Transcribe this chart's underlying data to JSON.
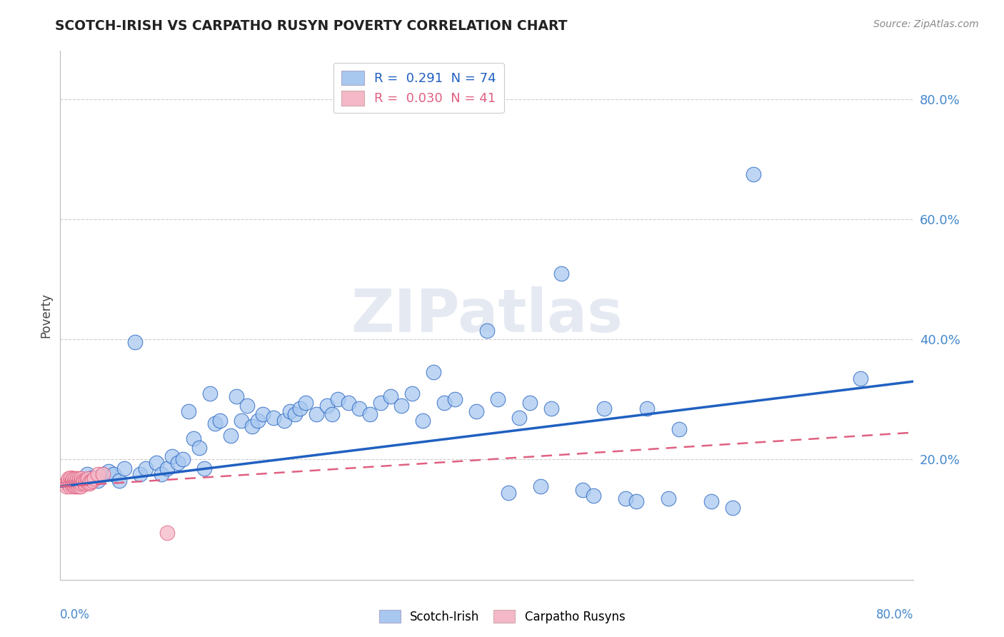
{
  "title": "SCOTCH-IRISH VS CARPATHO RUSYN POVERTY CORRELATION CHART",
  "source": "Source: ZipAtlas.com",
  "ylabel": "Poverty",
  "ytick_vals": [
    0.2,
    0.4,
    0.6,
    0.8
  ],
  "xlim": [
    0.0,
    0.8
  ],
  "ylim": [
    0.0,
    0.88
  ],
  "blue_color": "#a8c8f0",
  "pink_color": "#f5b8c8",
  "blue_line_color": "#2060c0",
  "pink_line_color": "#e06080",
  "watermark": "ZIPatlas",
  "si_x": [
    0.02,
    0.025,
    0.03,
    0.035,
    0.04,
    0.045,
    0.05,
    0.055,
    0.06,
    0.07,
    0.075,
    0.08,
    0.09,
    0.095,
    0.1,
    0.105,
    0.11,
    0.115,
    0.12,
    0.125,
    0.13,
    0.135,
    0.14,
    0.145,
    0.15,
    0.16,
    0.165,
    0.17,
    0.175,
    0.18,
    0.185,
    0.19,
    0.2,
    0.21,
    0.215,
    0.22,
    0.225,
    0.23,
    0.24,
    0.25,
    0.255,
    0.26,
    0.27,
    0.28,
    0.29,
    0.3,
    0.31,
    0.32,
    0.33,
    0.34,
    0.35,
    0.36,
    0.37,
    0.39,
    0.4,
    0.41,
    0.42,
    0.43,
    0.44,
    0.45,
    0.46,
    0.47,
    0.49,
    0.5,
    0.51,
    0.53,
    0.54,
    0.55,
    0.57,
    0.58,
    0.61,
    0.63,
    0.65,
    0.75
  ],
  "si_y": [
    0.165,
    0.175,
    0.17,
    0.165,
    0.175,
    0.18,
    0.175,
    0.165,
    0.185,
    0.395,
    0.175,
    0.185,
    0.195,
    0.175,
    0.185,
    0.205,
    0.195,
    0.2,
    0.28,
    0.235,
    0.22,
    0.185,
    0.31,
    0.26,
    0.265,
    0.24,
    0.305,
    0.265,
    0.29,
    0.255,
    0.265,
    0.275,
    0.27,
    0.265,
    0.28,
    0.275,
    0.285,
    0.295,
    0.275,
    0.29,
    0.275,
    0.3,
    0.295,
    0.285,
    0.275,
    0.295,
    0.305,
    0.29,
    0.31,
    0.265,
    0.345,
    0.295,
    0.3,
    0.28,
    0.415,
    0.3,
    0.145,
    0.27,
    0.295,
    0.155,
    0.285,
    0.51,
    0.15,
    0.14,
    0.285,
    0.135,
    0.13,
    0.285,
    0.135,
    0.25,
    0.13,
    0.12,
    0.675,
    0.335
  ],
  "cr_x": [
    0.005,
    0.006,
    0.007,
    0.008,
    0.008,
    0.009,
    0.01,
    0.01,
    0.011,
    0.011,
    0.012,
    0.012,
    0.013,
    0.013,
    0.014,
    0.014,
    0.015,
    0.015,
    0.016,
    0.016,
    0.017,
    0.017,
    0.018,
    0.018,
    0.019,
    0.019,
    0.02,
    0.02,
    0.021,
    0.022,
    0.023,
    0.024,
    0.025,
    0.026,
    0.027,
    0.028,
    0.03,
    0.032,
    0.035,
    0.04,
    0.1
  ],
  "cr_y": [
    0.16,
    0.155,
    0.165,
    0.16,
    0.168,
    0.155,
    0.162,
    0.17,
    0.158,
    0.165,
    0.16,
    0.168,
    0.155,
    0.162,
    0.16,
    0.168,
    0.155,
    0.163,
    0.16,
    0.168,
    0.155,
    0.162,
    0.16,
    0.168,
    0.155,
    0.162,
    0.16,
    0.168,
    0.165,
    0.162,
    0.16,
    0.165,
    0.162,
    0.168,
    0.16,
    0.162,
    0.165,
    0.168,
    0.175,
    0.175,
    0.078
  ]
}
